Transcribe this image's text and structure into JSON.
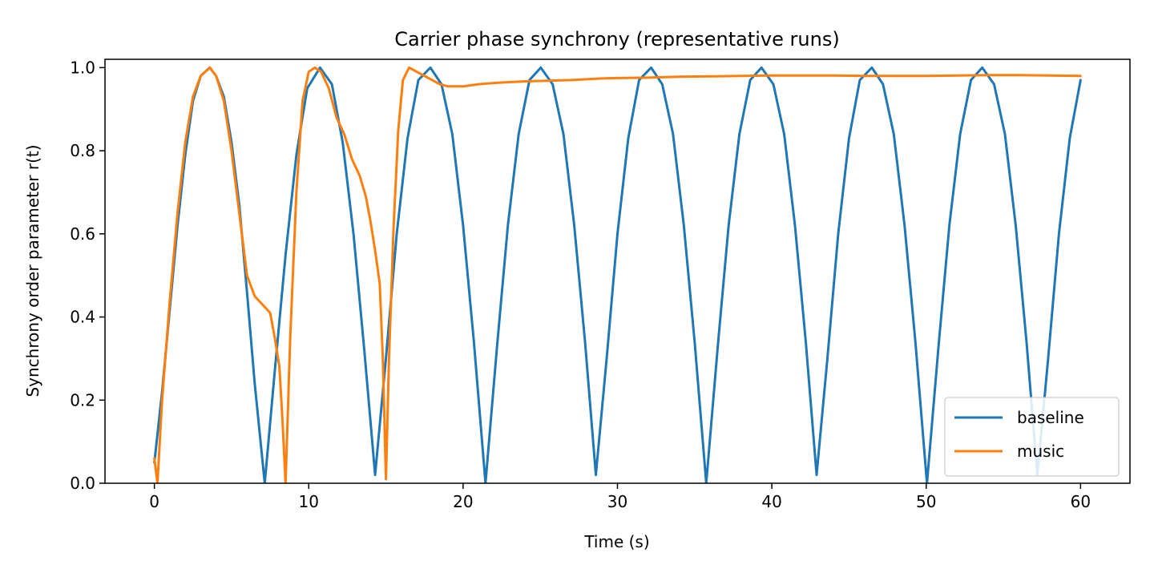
{
  "chart_data": {
    "type": "line",
    "title": "Carrier phase synchrony (representative runs)",
    "xlabel": "Time (s)",
    "ylabel": "Synchrony order parameter r(t)",
    "xlim": [
      -3.2,
      63.2
    ],
    "ylim": [
      0.0,
      1.02
    ],
    "xticks": [
      0,
      10,
      20,
      30,
      40,
      50,
      60
    ],
    "xtick_labels": [
      "0",
      "10",
      "20",
      "30",
      "40",
      "50",
      "60"
    ],
    "yticks": [
      0.0,
      0.2,
      0.4,
      0.6,
      0.8,
      1.0
    ],
    "ytick_labels": [
      "0.0",
      "0.2",
      "0.4",
      "0.6",
      "0.8",
      "1.0"
    ],
    "grid": false,
    "legend_position": "lower-right",
    "series": [
      {
        "name": "baseline",
        "color": "#1f77b4",
        "x": [
          0,
          0.5,
          1,
          1.5,
          2,
          2.5,
          3,
          3.58,
          4,
          4.5,
          5,
          5.5,
          6,
          6.5,
          7.15,
          7.8,
          8.5,
          9.2,
          9.9,
          10.73,
          11.5,
          12.2,
          12.9,
          13.6,
          14.3,
          15,
          15.7,
          16.4,
          17.1,
          17.88,
          18.6,
          19.3,
          20,
          20.7,
          21.45,
          22.2,
          22.9,
          23.6,
          24.3,
          25.03,
          25.8,
          26.5,
          27.2,
          27.9,
          28.6,
          29.3,
          30,
          30.7,
          31.4,
          32.18,
          32.9,
          33.6,
          34.3,
          35,
          35.75,
          36.5,
          37.2,
          37.9,
          38.6,
          39.33,
          40.1,
          40.8,
          41.5,
          42.2,
          42.9,
          43.6,
          44.3,
          45,
          45.7,
          46.48,
          47.2,
          47.9,
          48.6,
          49.3,
          50.05,
          50.8,
          51.5,
          52.2,
          52.9,
          53.63,
          54.4,
          55.1,
          55.8,
          56.5,
          57.2,
          57.9,
          58.6,
          59.3,
          60
        ],
        "y": [
          0.05,
          0.22,
          0.42,
          0.62,
          0.79,
          0.92,
          0.98,
          1.0,
          0.98,
          0.93,
          0.82,
          0.67,
          0.46,
          0.24,
          0.0,
          0.27,
          0.55,
          0.79,
          0.95,
          1.0,
          0.96,
          0.82,
          0.6,
          0.32,
          0.02,
          0.3,
          0.6,
          0.83,
          0.97,
          1.0,
          0.96,
          0.84,
          0.62,
          0.34,
          0.0,
          0.33,
          0.62,
          0.84,
          0.97,
          1.0,
          0.96,
          0.84,
          0.62,
          0.34,
          0.02,
          0.3,
          0.6,
          0.83,
          0.97,
          1.0,
          0.96,
          0.84,
          0.62,
          0.34,
          0.0,
          0.33,
          0.62,
          0.84,
          0.97,
          1.0,
          0.96,
          0.84,
          0.62,
          0.34,
          0.02,
          0.3,
          0.6,
          0.83,
          0.97,
          1.0,
          0.96,
          0.84,
          0.62,
          0.34,
          0.0,
          0.33,
          0.62,
          0.84,
          0.97,
          1.0,
          0.96,
          0.84,
          0.62,
          0.34,
          0.02,
          0.3,
          0.6,
          0.83,
          0.97
        ]
      },
      {
        "name": "music",
        "color": "#ff7f0e",
        "x": [
          0,
          0.2,
          0.5,
          1,
          1.5,
          2,
          2.5,
          3,
          3.6,
          4,
          4.5,
          5,
          5.5,
          6,
          6.5,
          7,
          7.5,
          7.8,
          8.1,
          8.3,
          8.5,
          8.8,
          9.2,
          9.6,
          10,
          10.4,
          10.8,
          11.3,
          11.8,
          12.3,
          12.8,
          13.3,
          13.7,
          14,
          14.3,
          14.6,
          14.8,
          15,
          15.2,
          15.5,
          15.8,
          16.1,
          16.5,
          17,
          17.5,
          18,
          18.5,
          19,
          20,
          21,
          22,
          23,
          24,
          25,
          26,
          27,
          28,
          29,
          30,
          32,
          34,
          36,
          38,
          40,
          42,
          44,
          46,
          48,
          50,
          52,
          54,
          56,
          58,
          60
        ],
        "y": [
          0.06,
          0.0,
          0.2,
          0.44,
          0.65,
          0.82,
          0.93,
          0.98,
          1.0,
          0.98,
          0.92,
          0.8,
          0.65,
          0.5,
          0.45,
          0.43,
          0.41,
          0.35,
          0.28,
          0.15,
          0.0,
          0.35,
          0.7,
          0.92,
          0.99,
          1.0,
          0.99,
          0.95,
          0.88,
          0.84,
          0.78,
          0.74,
          0.69,
          0.63,
          0.56,
          0.48,
          0.3,
          0.01,
          0.3,
          0.62,
          0.85,
          0.97,
          1.0,
          0.99,
          0.98,
          0.97,
          0.96,
          0.955,
          0.955,
          0.96,
          0.963,
          0.965,
          0.967,
          0.968,
          0.969,
          0.97,
          0.972,
          0.974,
          0.975,
          0.976,
          0.978,
          0.979,
          0.98,
          0.981,
          0.981,
          0.981,
          0.98,
          0.98,
          0.98,
          0.981,
          0.982,
          0.982,
          0.981,
          0.98
        ]
      }
    ]
  }
}
